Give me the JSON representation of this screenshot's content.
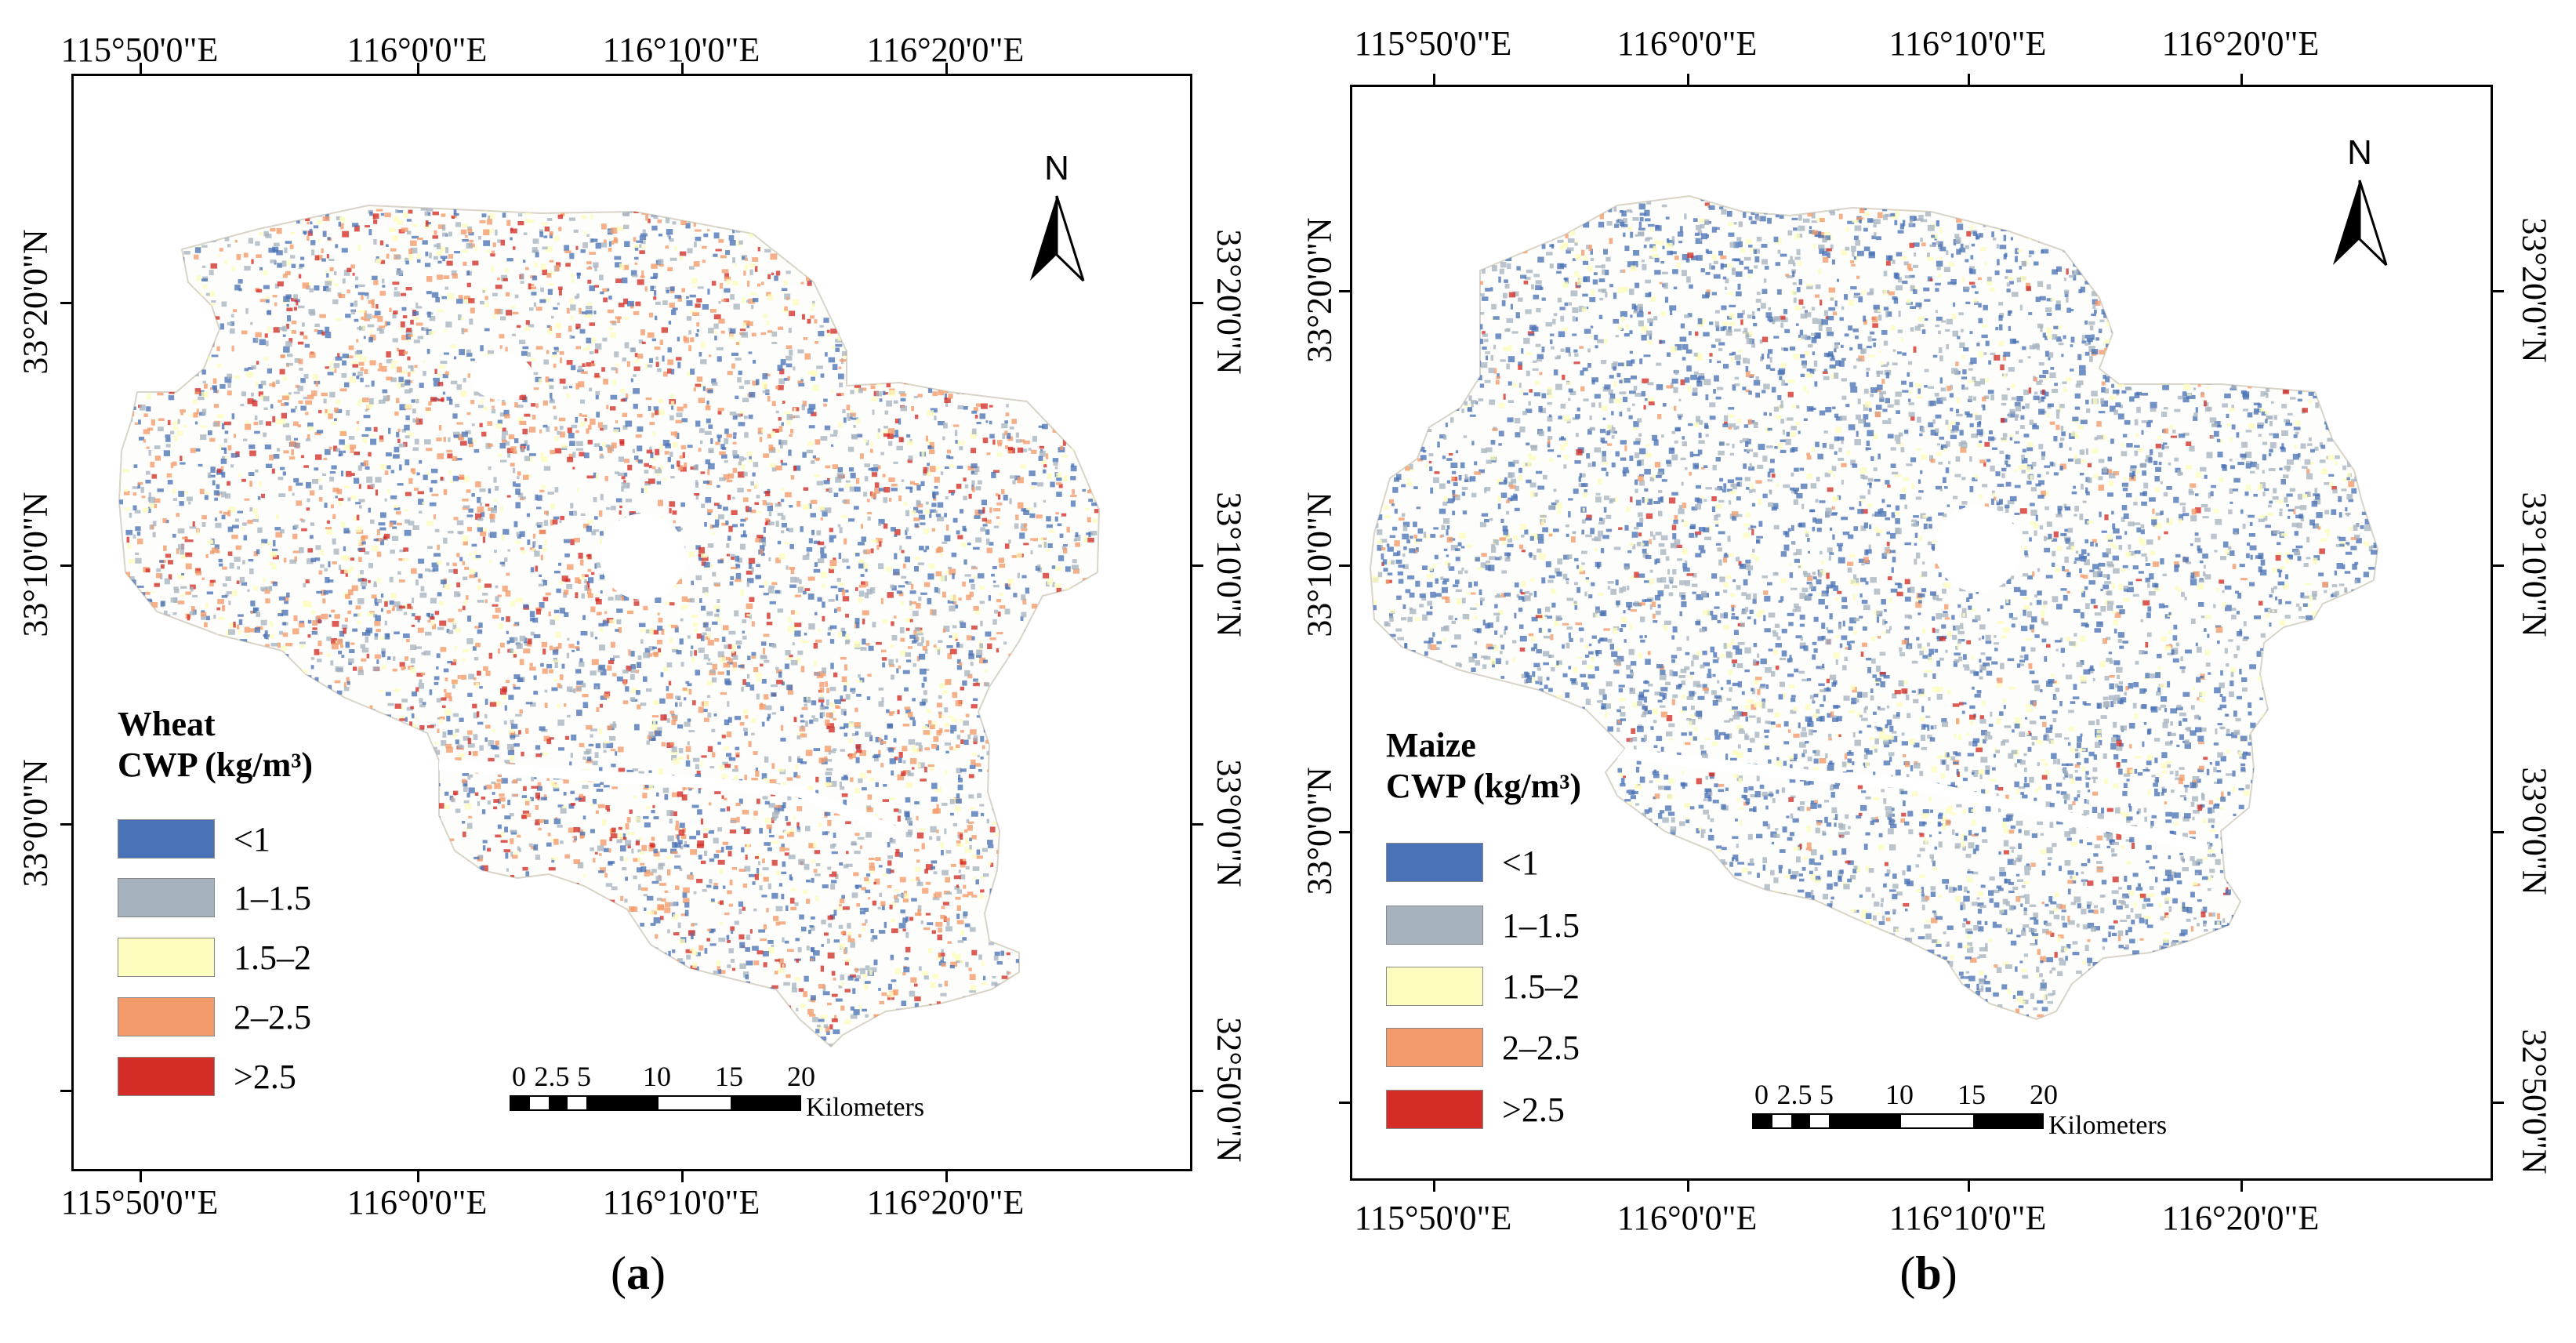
{
  "panels": [
    {
      "id": "a",
      "caption_letter": "a",
      "legend_title_line1": "Wheat",
      "legend_title_line2": "CWP (kg/m³)",
      "dominant_class": "2–2.5",
      "lon_labels_top": [
        "115°50'0\"E",
        "116°0'0\"E",
        "116°10'0\"E",
        "116°20'0\"E"
      ],
      "lon_labels_bottom": [
        "115°50'0\"E",
        "116°0'0\"E",
        "116°10'0\"E",
        "116°20'0\"E"
      ],
      "lat_labels_left": [
        "33°20'0\"N",
        "33°10'0\"N",
        "33°0'0\"N"
      ],
      "lat_labels_right": [
        "33°20'0\"N",
        "33°10'0\"N",
        "33°0'0\"N",
        "32°50'0\"N"
      ],
      "north_label": "N",
      "scale_numbers": [
        "0",
        "2.5",
        "5",
        "10",
        "15",
        "20"
      ],
      "scale_unit": "Kilometers"
    },
    {
      "id": "b",
      "caption_letter": "b",
      "legend_title_line1": "Maize",
      "legend_title_line2": "CWP (kg/m³)",
      "dominant_class": "<1",
      "lon_labels_top": [
        "115°50'0\"E",
        "116°0'0\"E",
        "116°10'0\"E",
        "116°20'0\"E"
      ],
      "lon_labels_bottom": [
        "115°50'0\"E",
        "116°0'0\"E",
        "116°10'0\"E",
        "116°20'0\"E"
      ],
      "lat_labels_left": [
        "33°20'0\"N",
        "33°10'0\"N",
        "33°0'0\"N"
      ],
      "lat_labels_right": [
        "33°20'0\"N",
        "33°10'0\"N",
        "33°0'0\"N",
        "32°50'0\"N"
      ],
      "north_label": "N",
      "scale_numbers": [
        "0",
        "2.5",
        "5",
        "10",
        "15",
        "20"
      ],
      "scale_unit": "Kilometers"
    }
  ],
  "legend_classes": [
    {
      "label": "<1",
      "color": "#4a72b6"
    },
    {
      "label": "1–1.5",
      "color": "#a6b3bf"
    },
    {
      "label": "1.5–2",
      "color": "#fcfcbe"
    },
    {
      "label": "2–2.5",
      "color": "#f29a6a"
    },
    {
      "label": ">2.5",
      "color": "#d42d27"
    }
  ]
}
